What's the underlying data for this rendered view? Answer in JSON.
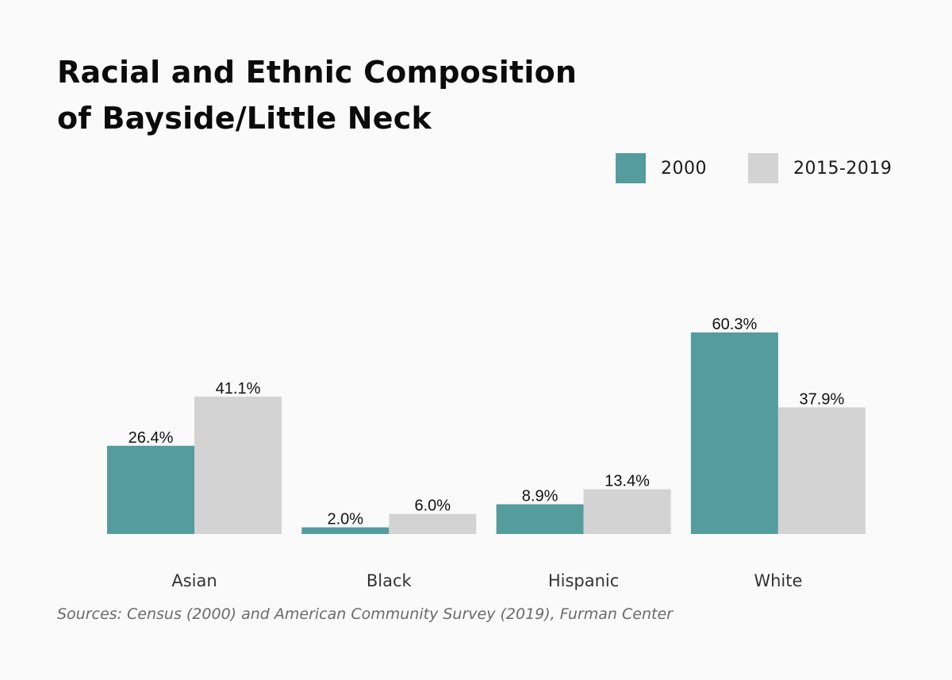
{
  "title_lines": [
    "Racial and Ethnic Composition",
    "of Bayside/Little Neck"
  ],
  "legend": [
    {
      "label": "2000",
      "color": "#559c9e"
    },
    {
      "label": "2015-2019",
      "color": "#d3d3d3"
    }
  ],
  "source": "Sources: Census (2000) and American Community Survey (2019), Furman Center",
  "chart_data": {
    "type": "bar",
    "categories": [
      "Asian",
      "Black",
      "Hispanic",
      "White"
    ],
    "series": [
      {
        "name": "2000",
        "values": [
          26.4,
          2.0,
          8.9,
          60.3
        ],
        "labels": [
          "26.4%",
          "2.0%",
          "8.9%",
          "60.3%"
        ],
        "color": "#559c9e"
      },
      {
        "name": "2015-2019",
        "values": [
          41.1,
          6.0,
          13.4,
          37.9
        ],
        "labels": [
          "41.1%",
          "6.0%",
          "13.4%",
          "37.9%"
        ],
        "color": "#d3d3d3"
      }
    ],
    "title": "Racial and Ethnic Composition of Bayside/Little Neck",
    "xlabel": "",
    "ylabel": "",
    "ylim": [
      0,
      60.3
    ],
    "grid": false,
    "legend_position": "top-right"
  }
}
